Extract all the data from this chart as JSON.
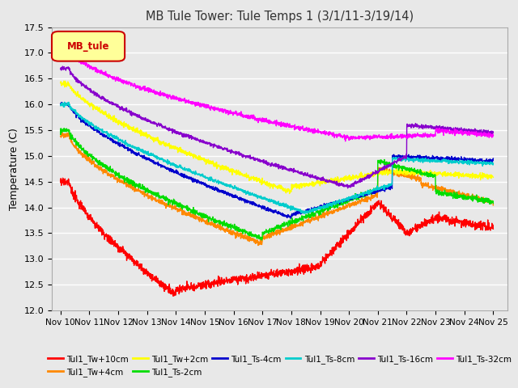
{
  "title": "MB Tule Tower: Tule Temps 1 (3/1/11-3/19/14)",
  "ylabel": "Temperature (C)",
  "xlabel": "",
  "ylim": [
    12.0,
    17.5
  ],
  "yticks": [
    12.0,
    12.5,
    13.0,
    13.5,
    14.0,
    14.5,
    15.0,
    15.5,
    16.0,
    16.5,
    17.0,
    17.5
  ],
  "xtick_labels": [
    "Nov 10",
    "Nov 11",
    "Nov 12",
    "Nov 13",
    "Nov 14",
    "Nov 15",
    "Nov 16",
    "Nov 17",
    "Nov 18",
    "Nov 19",
    "Nov 20",
    "Nov 21",
    "Nov 22",
    "Nov 23",
    "Nov 24",
    "Nov 25"
  ],
  "axes_facecolor": "#e8e8e8",
  "grid_color": "#ffffff",
  "series": [
    {
      "label": "Tul1_Tw+10cm",
      "color": "#ff0000"
    },
    {
      "label": "Tul1_Tw+4cm",
      "color": "#ff8800"
    },
    {
      "label": "Tul1_Tw+2cm",
      "color": "#ffff00"
    },
    {
      "label": "Tul1_Ts-2cm",
      "color": "#00dd00"
    },
    {
      "label": "Tul1_Ts-4cm",
      "color": "#0000cc"
    },
    {
      "label": "Tul1_Ts-8cm",
      "color": "#00cccc"
    },
    {
      "label": "Tul1_Ts-16cm",
      "color": "#8800cc"
    },
    {
      "label": "Tul1_Ts-32cm",
      "color": "#ff00ff"
    }
  ],
  "legend_box": {
    "text": "MB_tule",
    "facecolor": "#ffff99",
    "edgecolor": "#cc0000",
    "textcolor": "#cc0000"
  }
}
